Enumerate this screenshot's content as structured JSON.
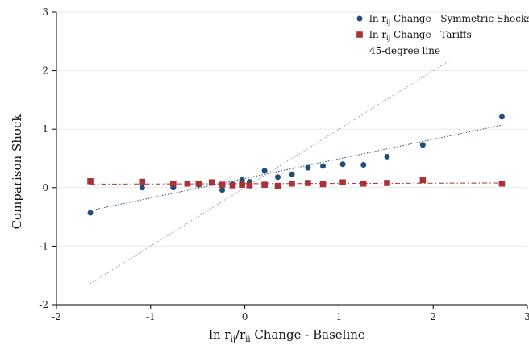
{
  "chart_data": {
    "type": "scatter",
    "xlabel": {
      "main": "ln r",
      "sub1": "ij",
      "slash": "/r",
      "sub2": "ii",
      "rest": " Change - Baseline"
    },
    "ylabel": "Comparison Shock",
    "xlim": [
      -2,
      3
    ],
    "ylim": [
      -2,
      3
    ],
    "xticks": [
      -2,
      -1,
      0,
      1,
      2,
      3
    ],
    "yticks": [
      -2,
      -1,
      0,
      1,
      2,
      3
    ],
    "xtick_labels": [
      "-2",
      "-1",
      "0",
      "1",
      "2",
      "3"
    ],
    "ytick_labels": [
      "-2",
      "-1",
      "0",
      "1",
      "2",
      "3"
    ],
    "grid": true,
    "legend_position": "top-right",
    "series": [
      {
        "name": "ln r_ij Change - Symmetric Shocks",
        "legend": {
          "pre": "ln r",
          "sub": "ij",
          "post": " Change - Symmetric Shocks"
        },
        "marker": "circle",
        "color": "#1f4e79",
        "x": [
          -1.64,
          -1.09,
          -0.76,
          -0.49,
          -0.35,
          -0.24,
          -0.13,
          -0.03,
          0.05,
          0.21,
          0.35,
          0.5,
          0.67,
          0.83,
          1.04,
          1.26,
          1.51,
          1.89,
          2.73
        ],
        "y": [
          -0.43,
          0.0,
          0.0,
          0.05,
          0.08,
          -0.04,
          0.06,
          0.13,
          0.1,
          0.29,
          0.18,
          0.23,
          0.34,
          0.37,
          0.4,
          0.39,
          0.53,
          0.73,
          1.21
        ],
        "fit": {
          "x": [
            -1.64,
            2.73
          ],
          "y": [
            -0.39,
            1.07
          ],
          "color": "#1f4e79"
        }
      },
      {
        "name": "ln r_ij Change - Tariffs",
        "legend": {
          "pre": "ln r",
          "sub": "ij",
          "post": " Change - Tariffs"
        },
        "marker": "square",
        "color": "#a83238",
        "x": [
          -1.64,
          -1.09,
          -0.76,
          -0.61,
          -0.49,
          -0.35,
          -0.24,
          -0.13,
          -0.03,
          0.05,
          0.21,
          0.35,
          0.5,
          0.67,
          0.83,
          1.04,
          1.26,
          1.51,
          1.89,
          2.73
        ],
        "y": [
          0.11,
          0.1,
          0.07,
          0.07,
          0.07,
          0.09,
          0.05,
          0.04,
          0.05,
          0.04,
          0.05,
          0.03,
          0.07,
          0.08,
          0.06,
          0.09,
          0.07,
          0.08,
          0.13,
          0.07
        ],
        "fit": {
          "x": [
            -1.64,
            2.73
          ],
          "y": [
            0.06,
            0.08
          ],
          "color": "#a83238"
        }
      },
      {
        "name": "45-degree line",
        "legend": {
          "pre": "45-degree line",
          "sub": "",
          "post": ""
        },
        "marker": "none",
        "color": "#999999",
        "x": [
          -1.64,
          2.17
        ],
        "y": [
          -1.64,
          2.17
        ]
      }
    ]
  }
}
